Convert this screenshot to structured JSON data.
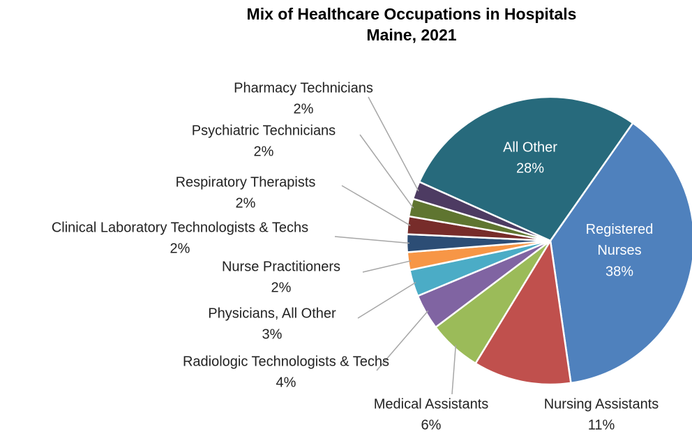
{
  "chart_data": {
    "type": "pie",
    "title": "Mix of Healthcare Occupations in Hospitals",
    "subtitle": "Maine, 2021",
    "categories": [
      "Registered Nurses",
      "Nursing Assistants",
      "Medical Assistants",
      "Radiologic Technologists & Techs",
      "Physicians, All Other",
      "Nurse Practitioners",
      "Clinical Laboratory Technologists & Techs",
      "Respiratory Therapists",
      "Psychiatric Technicians",
      "Pharmacy Technicians",
      "All Other"
    ],
    "values": [
      38,
      11,
      6,
      4,
      3,
      2,
      2,
      2,
      2,
      2,
      28
    ],
    "value_labels": [
      "38%",
      "11%",
      "6%",
      "4%",
      "3%",
      "2%",
      "2%",
      "2%",
      "2%",
      "2%",
      "28%"
    ],
    "colors": [
      "#4f81bd",
      "#c0504d",
      "#9bbb59",
      "#8064a2",
      "#4bacc6",
      "#f79646",
      "#2c4d75",
      "#772c2a",
      "#5f7530",
      "#4d3b62",
      "#276a7c"
    ]
  }
}
